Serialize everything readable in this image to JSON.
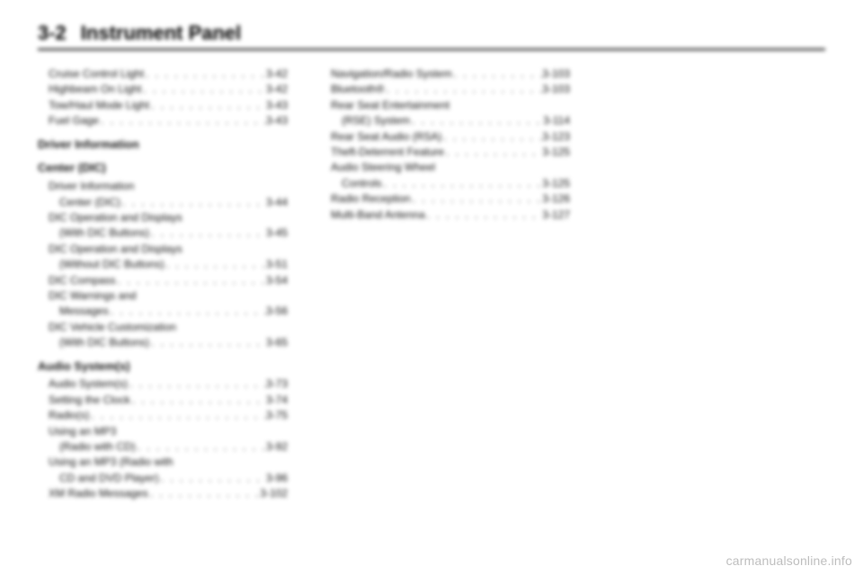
{
  "header": {
    "page_num": "3-2",
    "title": "Instrument Panel"
  },
  "watermark": "carmanualsonline.info",
  "toc": {
    "col1_top": [
      {
        "label": "Cruise Control Light",
        "page": "3-42",
        "indent": 1
      },
      {
        "label": "Highbeam On Light",
        "page": "3-42",
        "indent": 1
      },
      {
        "label": "Tow/Haul Mode Light",
        "page": "3-43",
        "indent": 1
      },
      {
        "label": "Fuel Gage",
        "page": "3-43",
        "indent": 1
      }
    ],
    "col1_dic_head1": "Driver Information",
    "col1_dic_head2": "Center (DIC)",
    "col1_dic": [
      {
        "label": "Driver Information",
        "page": "",
        "indent": 1,
        "nodots": true
      },
      {
        "label": "Center (DIC)",
        "page": "3-44",
        "indent": 2
      },
      {
        "label": "DIC Operation and Displays",
        "page": "",
        "indent": 1,
        "nodots": true
      },
      {
        "label": "(With DIC Buttons)",
        "page": "3-45",
        "indent": 2
      },
      {
        "label": "DIC Operation and Displays",
        "page": "",
        "indent": 1,
        "nodots": true
      },
      {
        "label": "(Without DIC Buttons)",
        "page": "3-51",
        "indent": 2
      },
      {
        "label": "DIC Compass",
        "page": "3-54",
        "indent": 1
      },
      {
        "label": "DIC Warnings and",
        "page": "",
        "indent": 1,
        "nodots": true
      },
      {
        "label": "Messages",
        "page": "3-56",
        "indent": 2
      },
      {
        "label": "DIC Vehicle Customization",
        "page": "",
        "indent": 1,
        "nodots": true
      },
      {
        "label": "(With DIC Buttons)",
        "page": "3-65",
        "indent": 2
      }
    ],
    "col1_audio_head": "Audio System(s)",
    "col1_audio": [
      {
        "label": "Audio System(s)",
        "page": "3-73",
        "indent": 1
      },
      {
        "label": "Setting the Clock",
        "page": "3-74",
        "indent": 1
      },
      {
        "label": "Radio(s)",
        "page": "3-75",
        "indent": 1
      },
      {
        "label": "Using an MP3",
        "page": "",
        "indent": 1,
        "nodots": true
      },
      {
        "label": "(Radio with CD)",
        "page": "3-92",
        "indent": 2
      },
      {
        "label": "Using an MP3 (Radio with",
        "page": "",
        "indent": 1,
        "nodots": true
      },
      {
        "label": "CD and DVD Player)",
        "page": "3-96",
        "indent": 2
      },
      {
        "label": "XM Radio Messages",
        "page": "3-102",
        "indent": 1
      }
    ],
    "col2": [
      {
        "label": "Navigation/Radio System",
        "page": "3-103",
        "indent": 1
      },
      {
        "label": "Bluetooth®",
        "page": "3-103",
        "indent": 1
      },
      {
        "label": "Rear Seat Entertainment",
        "page": "",
        "indent": 1,
        "nodots": true
      },
      {
        "label": "(RSE) System",
        "page": "3-114",
        "indent": 2
      },
      {
        "label": "Rear Seat Audio (RSA)",
        "page": "3-123",
        "indent": 1
      },
      {
        "label": "Theft-Deterrent Feature",
        "page": "3-125",
        "indent": 1
      },
      {
        "label": "Audio Steering Wheel",
        "page": "",
        "indent": 1,
        "nodots": true
      },
      {
        "label": "Controls",
        "page": "3-125",
        "indent": 2
      },
      {
        "label": "Radio Reception",
        "page": "3-126",
        "indent": 1
      },
      {
        "label": "Multi-Band Antenna",
        "page": "3-127",
        "indent": 1
      }
    ]
  }
}
